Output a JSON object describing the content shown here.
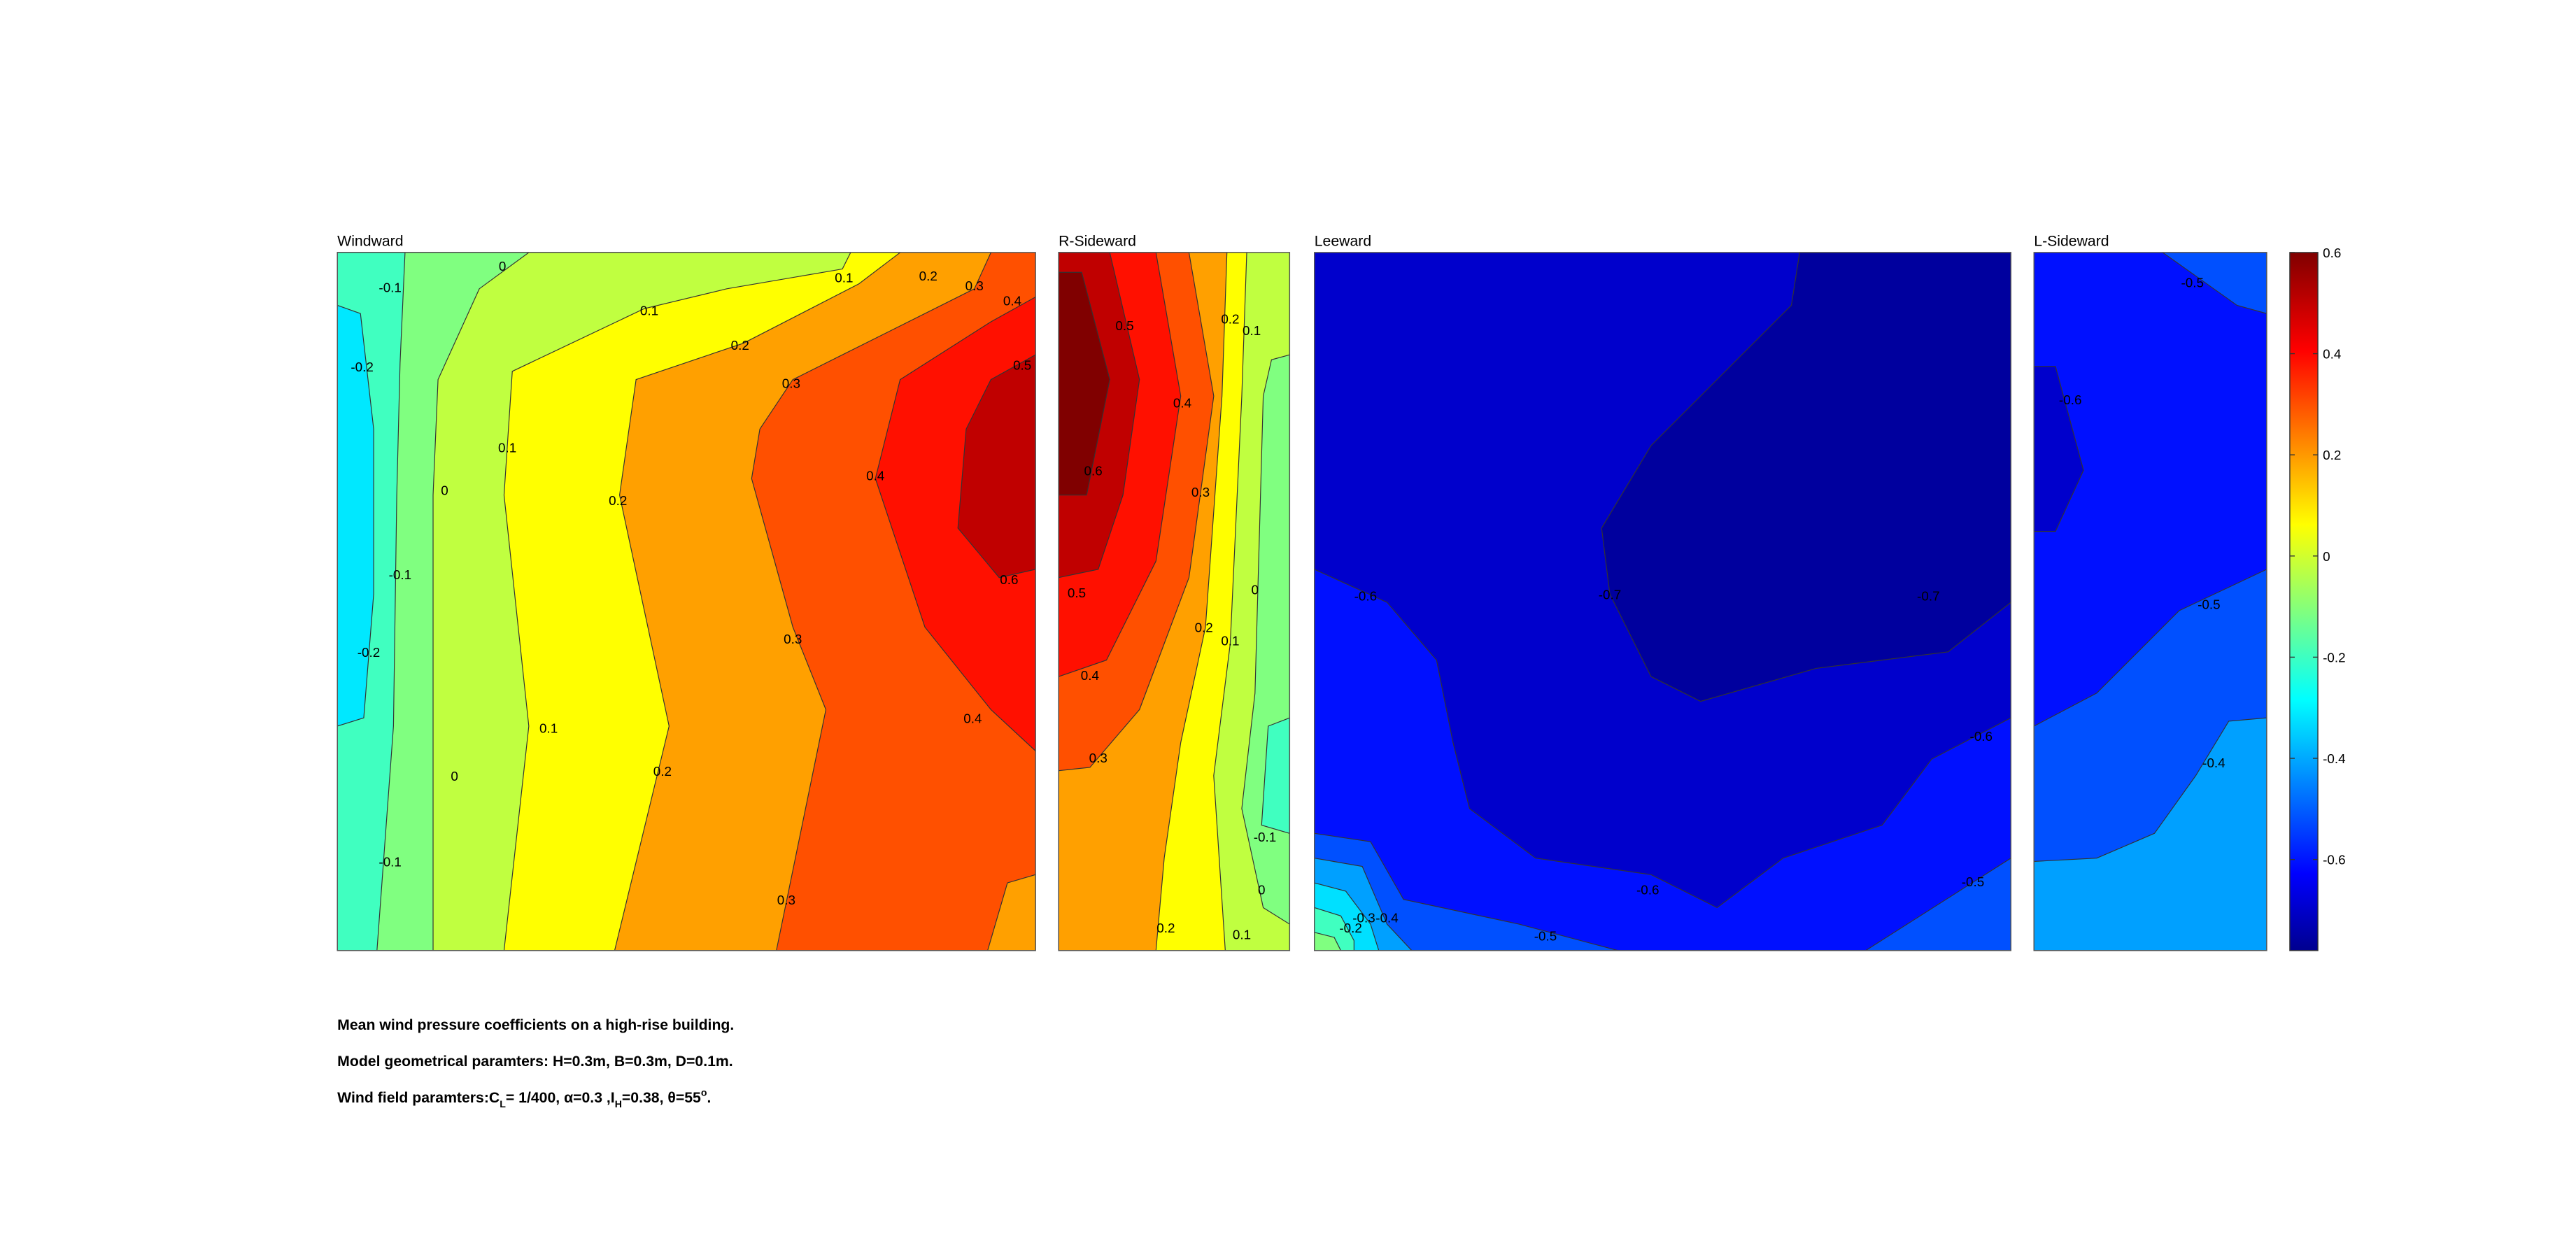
{
  "chart_data": [
    {
      "type": "contour",
      "title": "Windward",
      "contour_labels": [
        -0.1,
        0,
        0.1,
        0.1,
        0.2,
        0.3,
        0.4,
        -0.2,
        0.2,
        0.3,
        0.5,
        0.1,
        0,
        0.2,
        0.4,
        -0.1,
        0.6,
        -0.2,
        0.3,
        0.1,
        0.4,
        0,
        0.2,
        -0.1,
        0.3
      ]
    },
    {
      "type": "contour",
      "title": "R-Sideward",
      "contour_labels": [
        0.5,
        0.2,
        0.1,
        0.4,
        0.6,
        0.3,
        0,
        0.5,
        0.2,
        0.1,
        0.4,
        0.3,
        -0.1,
        0,
        0.2,
        0.1
      ]
    },
    {
      "type": "contour",
      "title": "Leeward",
      "contour_labels": [
        -0.6,
        -0.7,
        -0.7,
        -0.6,
        -0.6,
        -0.5,
        -0.3,
        -0.4,
        -0.2,
        -0.5
      ]
    },
    {
      "type": "contour",
      "title": "L-Sideward",
      "contour_labels": [
        -0.5,
        -0.6,
        -0.5,
        -0.4
      ]
    }
  ],
  "colorbar": {
    "ylim": [
      -0.78,
      0.6
    ],
    "yticks": [
      0.6,
      0.4,
      0.2,
      0,
      -0.2,
      -0.4,
      -0.6
    ]
  },
  "caption": {
    "line1": "Mean wind pressure coefficients on a high-rise building.",
    "line2": "Model geometrical paramters: H=0.3m, B=0.3m, D=0.1m.",
    "line3": [
      "Wind field paramters:C",
      "L",
      "= 1/400, α=0.3 ,I",
      "H",
      "=0.38, θ=55",
      "o",
      "."
    ]
  }
}
